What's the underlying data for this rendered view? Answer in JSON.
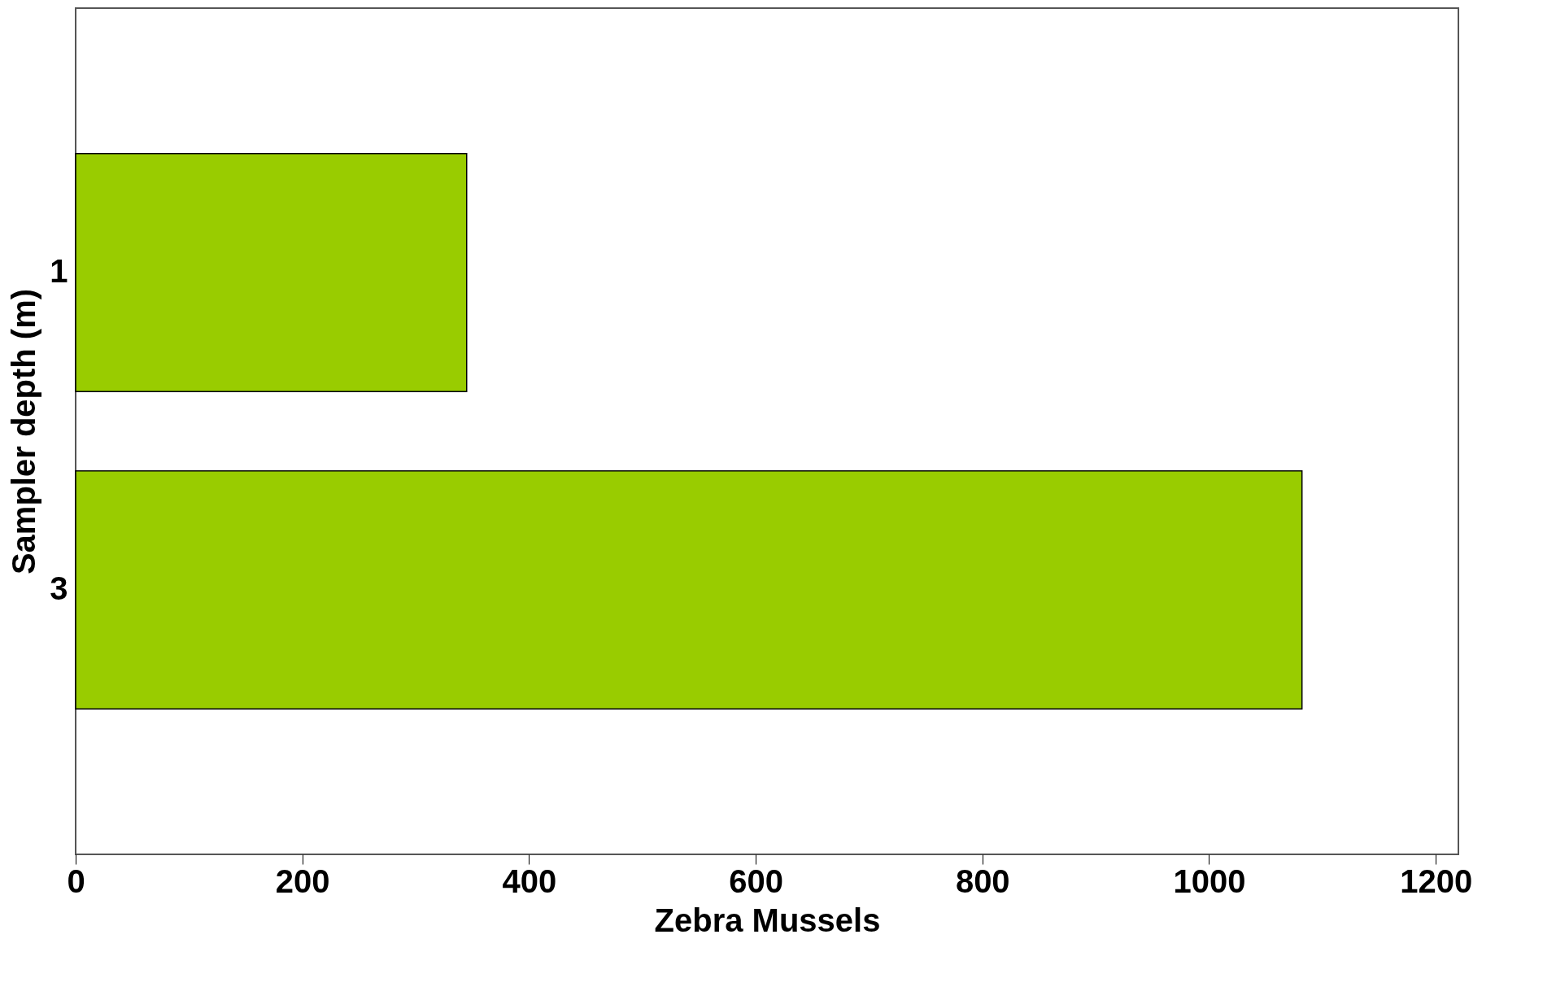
{
  "chart_data": {
    "type": "bar",
    "orientation": "horizontal",
    "categories": [
      "1",
      "3"
    ],
    "values": [
      345,
      1082
    ],
    "color": "#99cc00",
    "xlabel": "Zebra Mussels",
    "ylabel": "Sampler depth (m)",
    "xlim": [
      0,
      1220
    ],
    "xticks": [
      0,
      200,
      400,
      600,
      800,
      1000,
      1200
    ],
    "grid": false
  }
}
